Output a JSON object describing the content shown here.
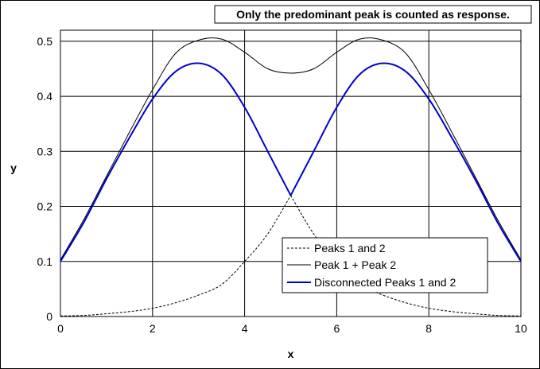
{
  "chart_data": {
    "type": "line",
    "title": "",
    "xlabel": "x",
    "ylabel": "y",
    "xlim": [
      0,
      10
    ],
    "ylim": [
      0,
      0.52
    ],
    "xticks": [
      0,
      2,
      4,
      6,
      8,
      10
    ],
    "yticks": [
      0,
      0.1,
      0.2,
      0.3,
      0.4,
      0.5
    ],
    "xtick_labels": [
      "0",
      "2",
      "4",
      "6",
      "8",
      "10"
    ],
    "ytick_labels": [
      "0",
      "0.1",
      "0.2",
      "0.3",
      "0.4",
      "0.5"
    ],
    "grid": true,
    "annotation": "Only the predominant peak is counted as response.",
    "legend_position": "bottom-right",
    "series": [
      {
        "name": "Peaks 1 and 2",
        "style": "dashed",
        "color": "#000000",
        "x": [
          0,
          0.5,
          1,
          1.5,
          2,
          2.5,
          3,
          3.5,
          4,
          4.5,
          5,
          5.5,
          6,
          6.5,
          7,
          7.5,
          8,
          8.5,
          9,
          9.5,
          10
        ],
        "y": [
          0.001,
          0.002,
          0.005,
          0.009,
          0.015,
          0.025,
          0.039,
          0.058,
          0.1,
          0.15,
          0.22,
          0.15,
          0.1,
          0.058,
          0.039,
          0.025,
          0.015,
          0.009,
          0.005,
          0.002,
          0.001
        ]
      },
      {
        "name": "Peak 1 + Peak 2",
        "style": "solid",
        "color": "#000000",
        "x": [
          0,
          0.5,
          1,
          1.5,
          2,
          2.5,
          3,
          3.5,
          4,
          4.5,
          5,
          5.5,
          6,
          6.5,
          7,
          7.5,
          8,
          8.5,
          9,
          9.5,
          10
        ],
        "y": [
          0.103,
          0.175,
          0.255,
          0.335,
          0.412,
          0.478,
          0.502,
          0.504,
          0.48,
          0.45,
          0.442,
          0.45,
          0.48,
          0.504,
          0.502,
          0.478,
          0.412,
          0.335,
          0.255,
          0.175,
          0.103
        ]
      },
      {
        "name": "Disconnected Peaks 1 and 2",
        "style": "solid-thick",
        "color": "#0000cc",
        "x": [
          0,
          0.5,
          1,
          1.5,
          2,
          2.5,
          3,
          3.5,
          4,
          4.5,
          5,
          5.5,
          6,
          6.5,
          7,
          7.5,
          8,
          8.5,
          9,
          9.5,
          10
        ],
        "y": [
          0.1,
          0.17,
          0.25,
          0.325,
          0.395,
          0.445,
          0.46,
          0.44,
          0.38,
          0.3,
          0.22,
          0.3,
          0.38,
          0.44,
          0.46,
          0.445,
          0.395,
          0.325,
          0.25,
          0.17,
          0.1
        ]
      }
    ]
  }
}
